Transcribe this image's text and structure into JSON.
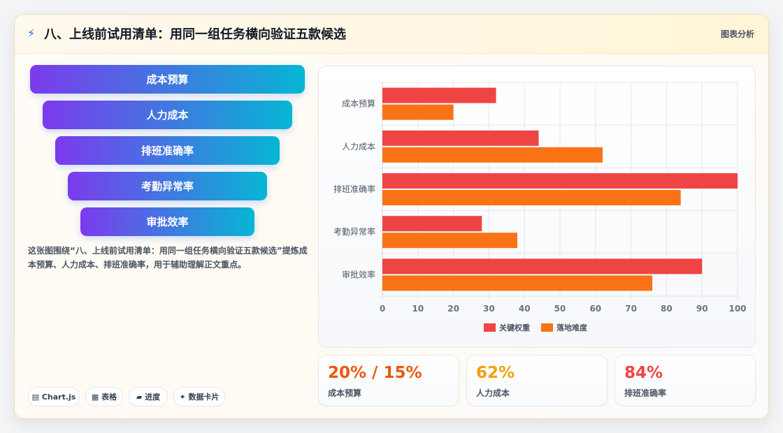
{
  "header": {
    "icon": "lightning-icon",
    "title": "八、上线前试用清单：用同一组任务横向验证五款候选",
    "tag": "图表分析"
  },
  "funnel": {
    "items": [
      {
        "label": "成本预算"
      },
      {
        "label": "人力成本"
      },
      {
        "label": "排班准确率"
      },
      {
        "label": "考勤异常率"
      },
      {
        "label": "审批效率"
      }
    ],
    "colors": [
      "#7c3aed",
      "#06b6d4"
    ]
  },
  "description": "这张图围绕“八、上线前试用清单：用同一组任务横向验证五款候选”提炼成本预算、人力成本、排班准确率，用于辅助理解正文重点。",
  "chips": [
    {
      "label": "▤ Chart.js",
      "icon": "chart-icon"
    },
    {
      "label": "▦ 表格",
      "icon": "table-icon"
    },
    {
      "label": "▰ 进度",
      "icon": "progress-icon"
    },
    {
      "label": "✦ 数据卡片",
      "icon": "sparkle-icon"
    }
  ],
  "chart_data": {
    "type": "bar",
    "orientation": "horizontal",
    "categories": [
      "成本预算",
      "人力成本",
      "排班准确率",
      "考勤异常率",
      "审批效率"
    ],
    "series": [
      {
        "name": "关键权重",
        "color": "#ef4444",
        "values": [
          32,
          44,
          100,
          28,
          90
        ]
      },
      {
        "name": "落地难度",
        "color": "#f97316",
        "values": [
          20,
          62,
          84,
          38,
          76
        ]
      }
    ],
    "xlim": [
      0,
      100
    ],
    "xticks": [
      0,
      10,
      20,
      30,
      40,
      50,
      60,
      70,
      80,
      90,
      100
    ],
    "grid": true,
    "legend": "bottom"
  },
  "stats": [
    {
      "value": "20% / 15%",
      "label": "成本预算",
      "color": "#ea580c"
    },
    {
      "value": "62%",
      "label": "人力成本",
      "color": "#f59e0b"
    },
    {
      "value": "84%",
      "label": "排班准确率",
      "color": "#ef4444"
    }
  ]
}
